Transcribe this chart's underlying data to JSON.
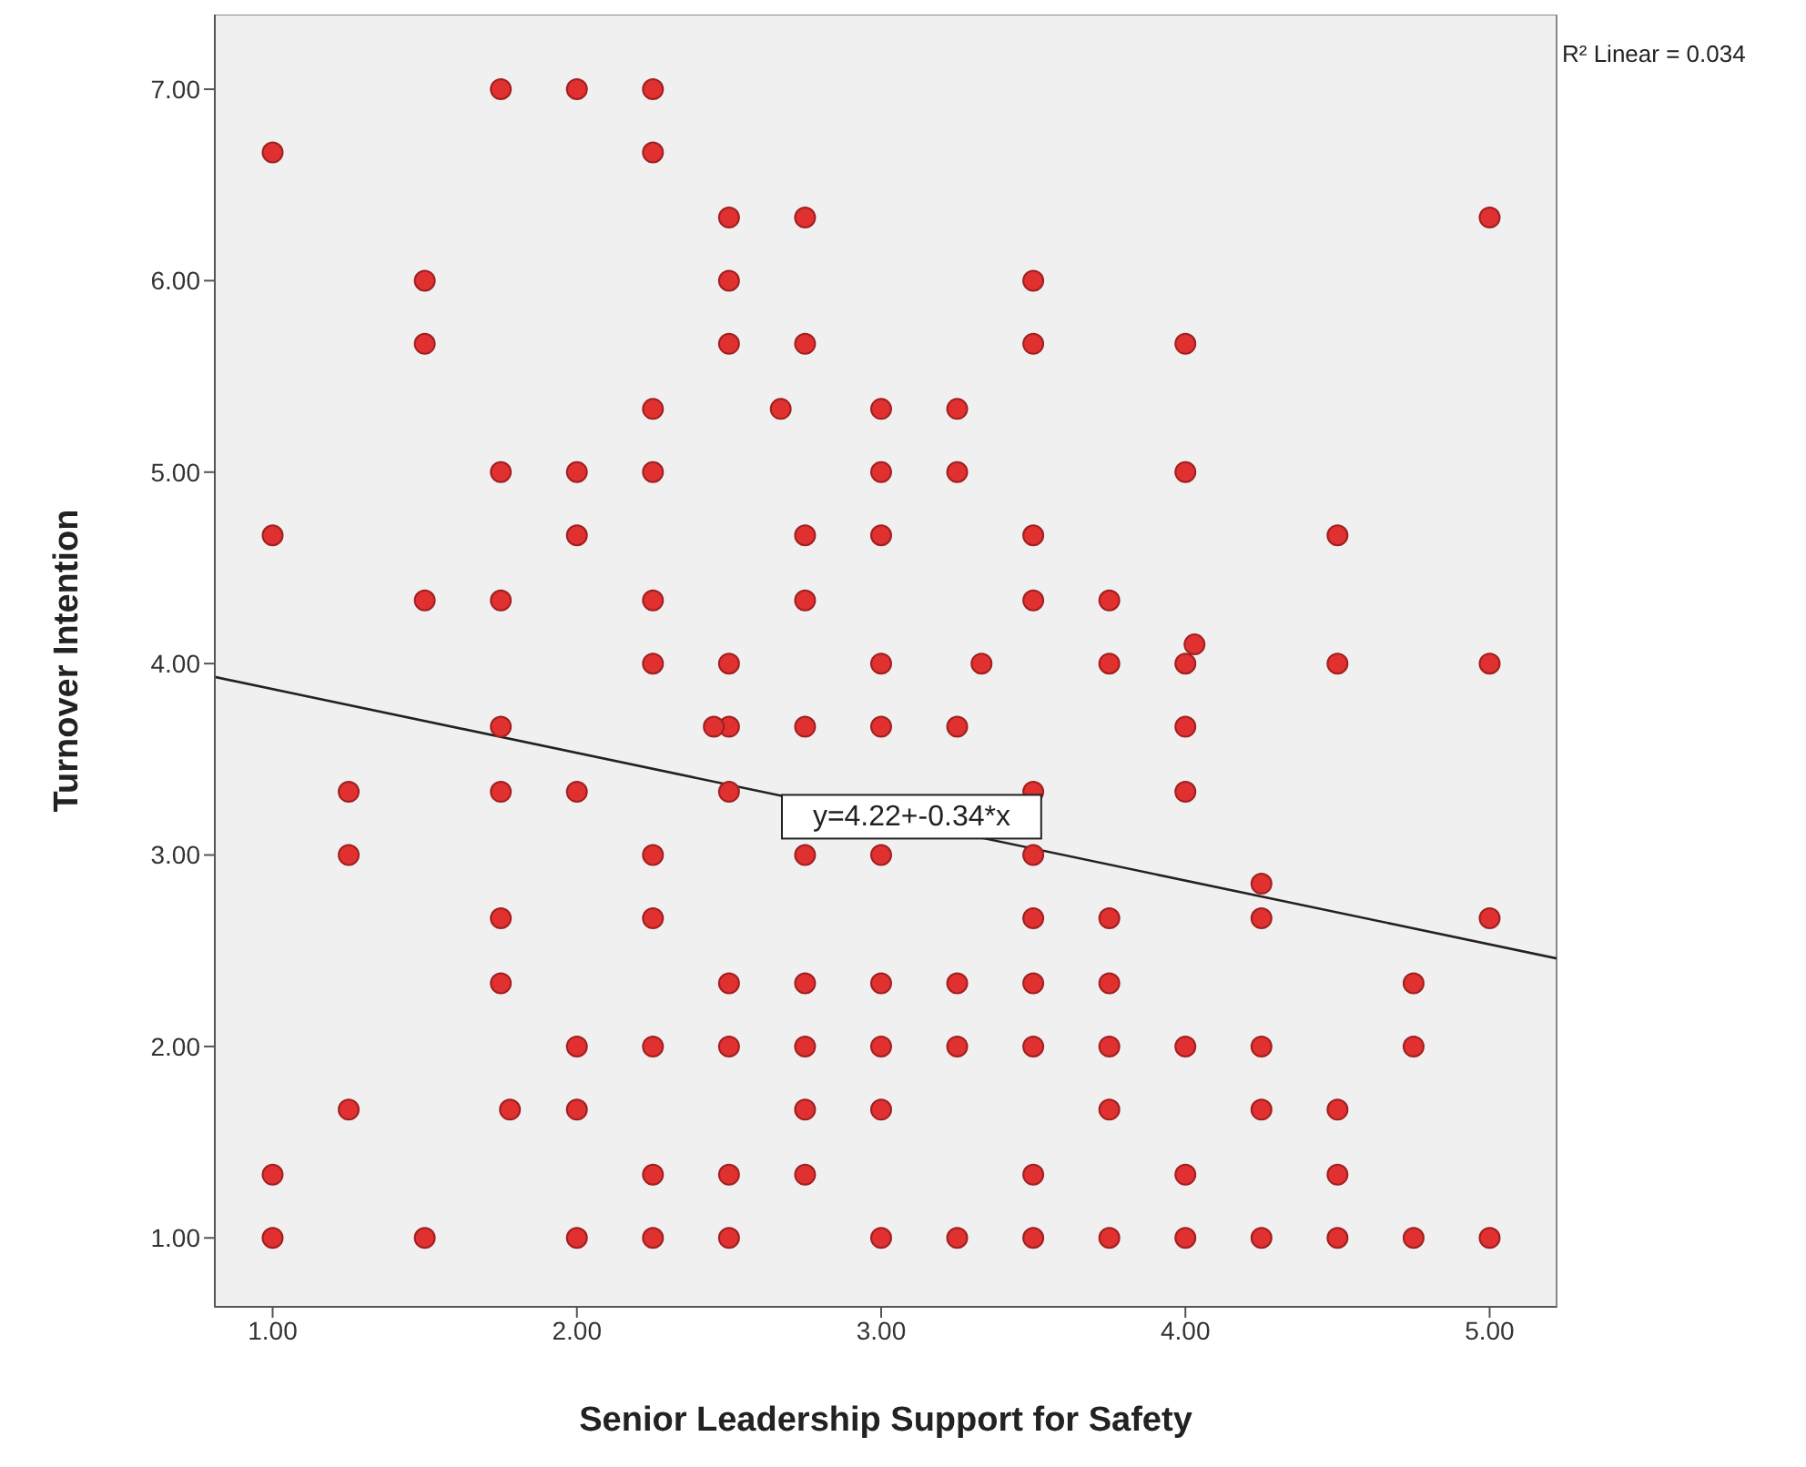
{
  "chart_data": {
    "type": "scatter",
    "xlabel": "Senior Leadership Support for Safety",
    "ylabel": "Turnover Intention",
    "xlim": [
      0.81,
      5.22
    ],
    "ylim": [
      0.64,
      7.39
    ],
    "xticks": [
      {
        "value": 1,
        "label": "1.00"
      },
      {
        "value": 2,
        "label": "2.00"
      },
      {
        "value": 3,
        "label": "3.00"
      },
      {
        "value": 4,
        "label": "4.00"
      },
      {
        "value": 5,
        "label": "5.00"
      }
    ],
    "yticks": [
      {
        "value": 1,
        "label": "1.00"
      },
      {
        "value": 2,
        "label": "2.00"
      },
      {
        "value": 3,
        "label": "3.00"
      },
      {
        "value": 4,
        "label": "4.00"
      },
      {
        "value": 5,
        "label": "5.00"
      },
      {
        "value": 6,
        "label": "6.00"
      },
      {
        "value": 7,
        "label": "7.00"
      }
    ],
    "marker": "circle",
    "series": [
      {
        "color": "#e03030",
        "x": [
          1,
          1,
          1,
          1,
          1.25,
          1.25,
          1.25,
          1.5,
          1.5,
          1.5,
          1.5,
          1.75,
          1.75,
          1.75,
          1.75,
          1.75,
          1.75,
          1.75,
          1.78,
          2,
          2,
          2,
          2,
          2,
          2,
          2,
          2.25,
          2.25,
          2.25,
          2.25,
          2.25,
          2.25,
          2.25,
          2.25,
          2.25,
          2.25,
          2.25,
          2.5,
          2.5,
          2.5,
          2.5,
          2.5,
          2.5,
          2.5,
          2.5,
          2.5,
          2.5,
          2.45,
          2.67,
          2.75,
          2.75,
          2.75,
          2.75,
          2.75,
          2.75,
          2.75,
          2.75,
          2.75,
          2.75,
          3,
          3,
          3,
          3,
          3,
          3,
          3,
          3,
          3,
          3,
          3.25,
          3.25,
          3.25,
          3.25,
          3.25,
          3.25,
          3.33,
          3.5,
          3.5,
          3.5,
          3.5,
          3.5,
          3.5,
          3.5,
          3.5,
          3.5,
          3.5,
          3.5,
          3.75,
          3.75,
          3.75,
          3.75,
          3.75,
          3.75,
          3.75,
          4,
          4,
          4,
          4,
          4,
          4,
          4,
          4,
          4.03,
          4.25,
          4.25,
          4.25,
          4.25,
          4.25,
          4.5,
          4.5,
          4.5,
          4.5,
          4.5,
          4.75,
          4.75,
          4.75,
          5,
          5,
          5,
          5
        ],
        "values": [
          6.67,
          4.67,
          1.33,
          1,
          3.33,
          3,
          1.67,
          6,
          5.67,
          4.33,
          1,
          7,
          5,
          4.33,
          3.67,
          3.33,
          2.67,
          2.33,
          1.67,
          7,
          5,
          4.67,
          3.33,
          2,
          1.67,
          1,
          7,
          6.67,
          5.33,
          5,
          4.33,
          4,
          3,
          2.67,
          2,
          1.33,
          1,
          6.33,
          6,
          5.67,
          4,
          3.67,
          3.33,
          2.33,
          2,
          1.33,
          1,
          3.67,
          5.33,
          6.33,
          5.67,
          4.67,
          4.33,
          3.67,
          3,
          2.33,
          2,
          1.67,
          1.33,
          5.33,
          5,
          4.67,
          4,
          3.67,
          3,
          2.33,
          2,
          1.67,
          1,
          5.33,
          5,
          3.67,
          2.33,
          2,
          1,
          4,
          6,
          5.67,
          4.67,
          4.33,
          3.33,
          3,
          2.67,
          2.33,
          2,
          1.33,
          1,
          4.33,
          4,
          2.67,
          2.33,
          2,
          1.67,
          1,
          5.67,
          5,
          4,
          3.67,
          3.33,
          2,
          1.33,
          1,
          4.1,
          2.85,
          2.67,
          2,
          1.67,
          1,
          4.67,
          4,
          1.67,
          1.33,
          1,
          2.33,
          2,
          1,
          6.33,
          4,
          2.67,
          1
        ]
      },
      {
        "type": "line",
        "marker": "none",
        "color": "#222222",
        "x": [
          0.81,
          5.22
        ],
        "values": [
          3.93,
          2.46
        ]
      }
    ],
    "annotations": [
      {
        "text": "y=4.22+-0.34*x",
        "x": 3.1,
        "y": 3.2
      },
      "R² Linear = 0.034"
    ]
  }
}
